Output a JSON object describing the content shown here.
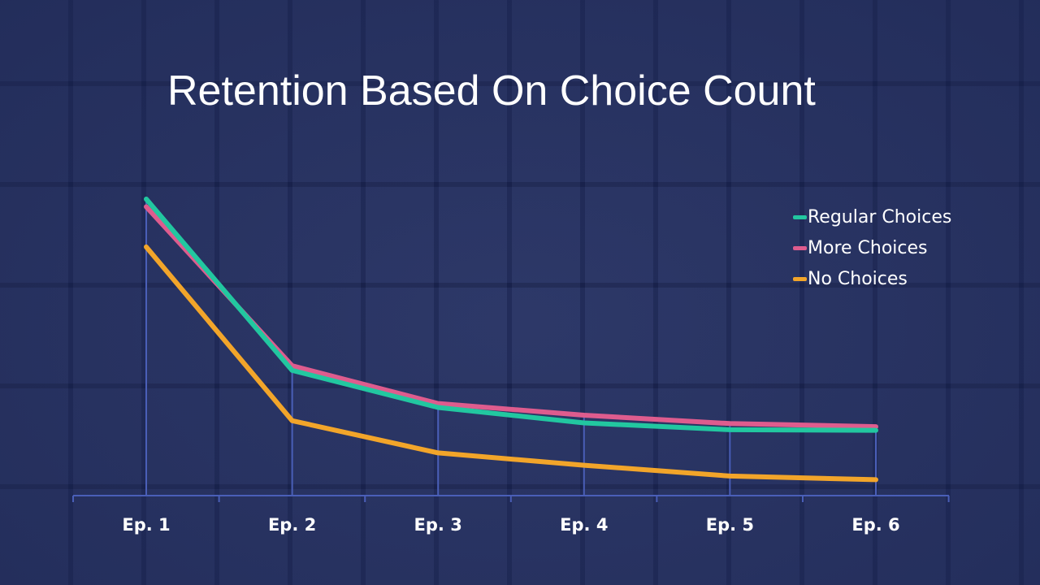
{
  "slide": {
    "title": "Retention Based On Choice Count"
  },
  "colors": {
    "regular": "#22c7a0",
    "more": "#de5c8e",
    "none": "#f2a52a",
    "axis": "#4a5fb8"
  },
  "chart_data": {
    "type": "line",
    "title": "Retention Based On Choice Count",
    "categories": [
      "Ep. 1",
      "Ep. 2",
      "Ep. 3",
      "Ep. 4",
      "Ep. 5",
      "Ep. 6"
    ],
    "ylim": [
      0,
      100
    ],
    "grid": false,
    "legend_position": "top-right",
    "series": [
      {
        "name": "Regular Choices",
        "color": "#22c7a0",
        "values": [
          100,
          44.5,
          32.5,
          27.5,
          25.3,
          25.1
        ]
      },
      {
        "name": "More Choices",
        "color": "#de5c8e",
        "values": [
          97.5,
          46.0,
          33.8,
          30.0,
          27.3,
          26.3
        ]
      },
      {
        "name": "No Choices",
        "color": "#f2a52a",
        "values": [
          84.5,
          28.2,
          17.8,
          13.8,
          10.3,
          9.1
        ]
      }
    ]
  }
}
